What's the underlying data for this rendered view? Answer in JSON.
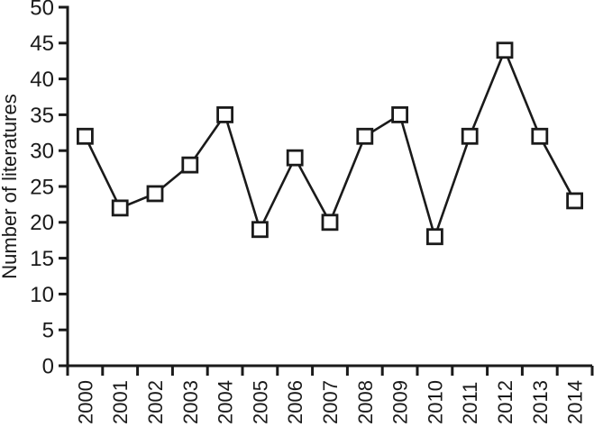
{
  "figure": {
    "background_color": "#ffffff",
    "ink_color": "#1a1a1a"
  },
  "chart_data": {
    "type": "line",
    "title": "",
    "xlabel": "",
    "ylabel": "Number of literatures",
    "categories": [
      "2000",
      "2001",
      "2002",
      "2003",
      "2004",
      "2005",
      "2006",
      "2007",
      "2008",
      "2009",
      "2010",
      "2011",
      "2012",
      "2013",
      "2014"
    ],
    "values": [
      32,
      22,
      24,
      28,
      35,
      19,
      29,
      20,
      32,
      35,
      18,
      32,
      44,
      32,
      23
    ],
    "ylim": [
      0,
      50
    ],
    "yticks": [
      0,
      5,
      10,
      15,
      20,
      25,
      30,
      35,
      40,
      45,
      50
    ],
    "grid": false,
    "legend": "none",
    "marker_style": "open-square",
    "line_color": "#1a1a1a",
    "marker_fill": "#ffffff",
    "axis_color": "#1a1a1a",
    "x_tick_label_rotation": -90
  }
}
